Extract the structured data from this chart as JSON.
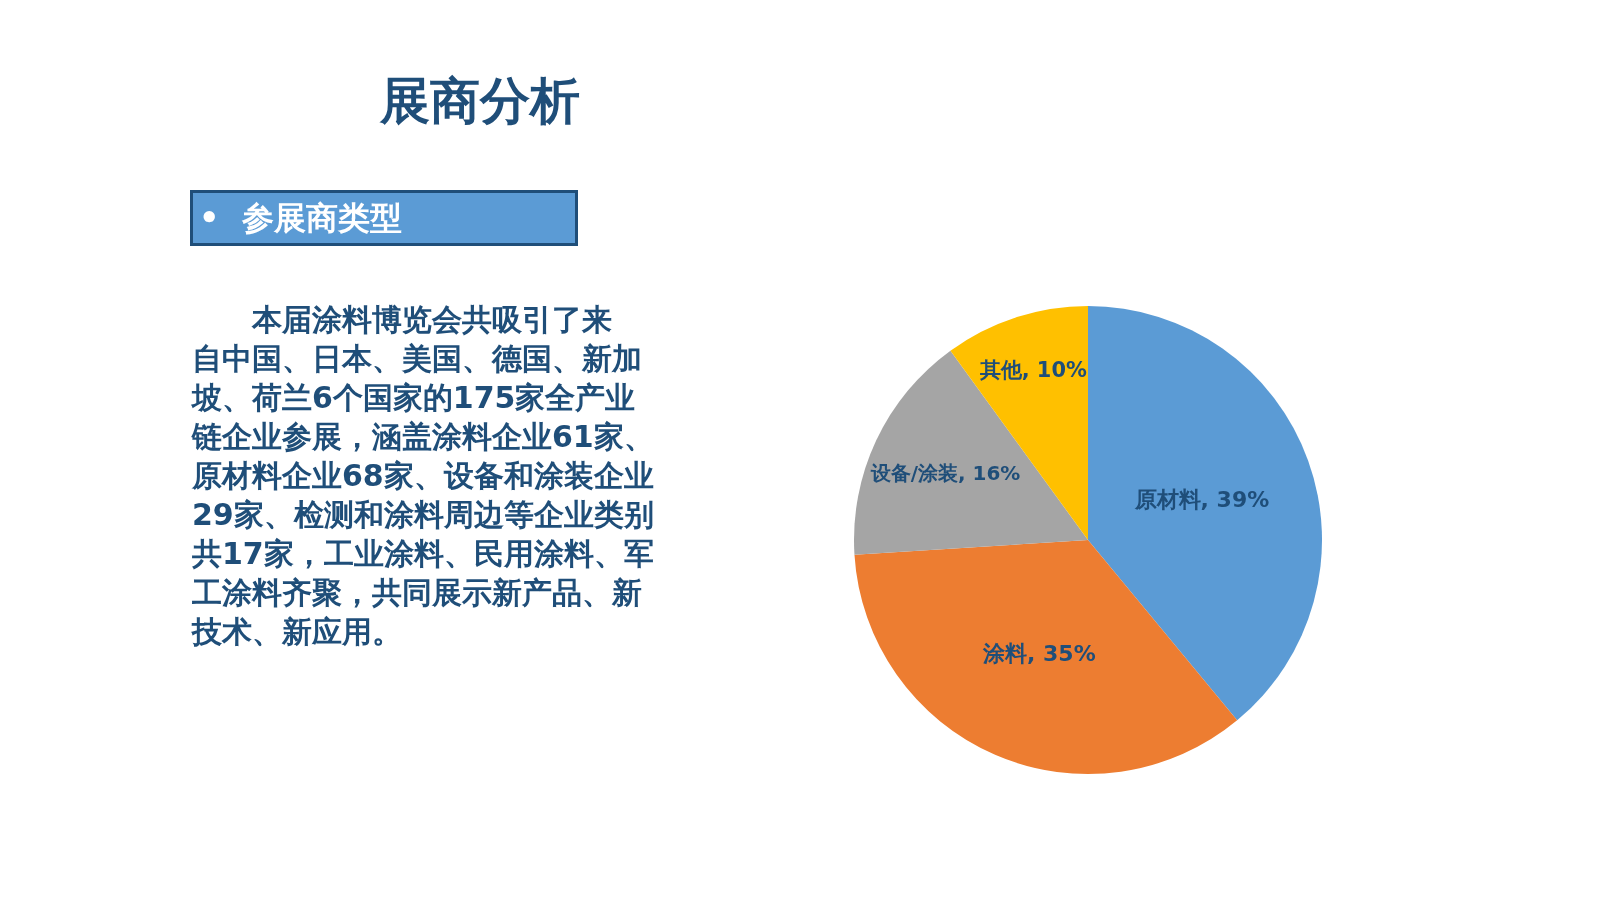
{
  "chart_data": {
    "type": "pie",
    "title": "展商分析",
    "subtitle": "•  参展商类型",
    "categories": [
      "原材料",
      "涂料",
      "设备/涂装",
      "其他"
    ],
    "values": [
      39,
      35,
      16,
      10
    ],
    "value_labels": [
      "39%",
      "35%",
      "16%",
      "10%"
    ],
    "colors": [
      "#5b9bd5",
      "#ed7d31",
      "#a5a5a5",
      "#ffc000"
    ],
    "annotations": [
      "本届涂料博览会共吸引了来自中国、日本、美国、德国、新加坡、荷兰6个国家的175家全产业链企业参展，涵盖涂料企业61家、原材料企业68家、设备和涂装企业29家、检测和涂料周边等企业类别共17家，工业涂料、民用涂料、军工涂料齐聚，共同展示新产品、新技术、新应用。"
    ]
  }
}
